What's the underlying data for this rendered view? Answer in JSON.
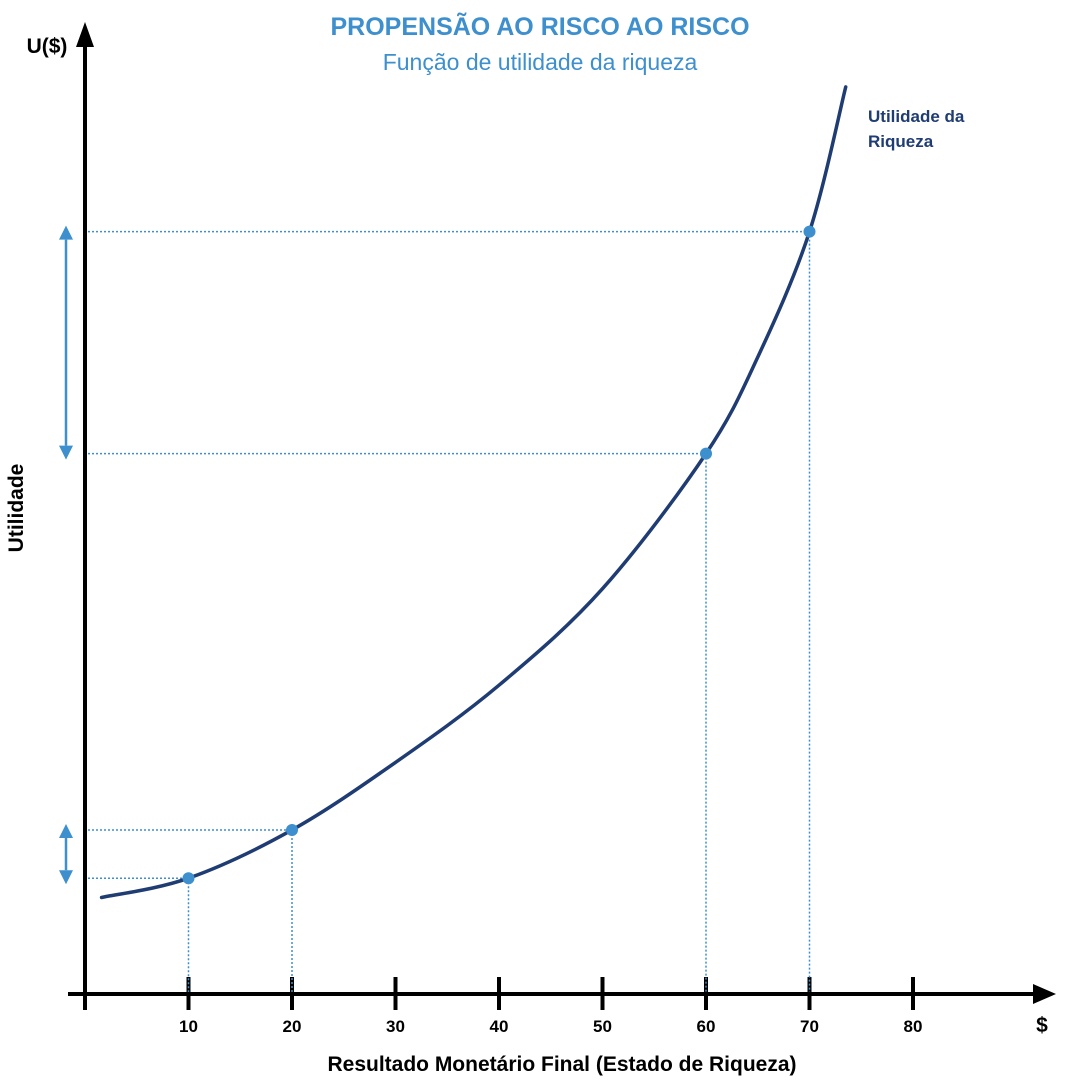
{
  "chart_data": {
    "type": "line",
    "title": "PROPENSÃO AO RISCO AO RISCO",
    "subtitle": "Função de utilidade da riqueza",
    "y_axis_label": "U($)",
    "y_side_label": "Utilidade",
    "x_unit_label": "$",
    "xlabel": "Resultado Monetário Final (Estado de Riqueza)",
    "x_ticks": [
      10,
      20,
      30,
      40,
      50,
      60,
      70,
      80
    ],
    "xlim": [
      0,
      90
    ],
    "grid": false,
    "y_scale": "unlabeled",
    "series": [
      {
        "name_lines": [
          "Utilidade da",
          "Riqueza"
        ],
        "color": "#1f3c73",
        "x": [
          1.6,
          10,
          20,
          30,
          40,
          50,
          60,
          65,
          70,
          73.5
        ],
        "y": [
          0.1,
          0.12,
          0.17,
          0.24,
          0.32,
          0.42,
          0.56,
          0.66,
          0.79,
          0.94
        ]
      }
    ],
    "highlighted_points": [
      {
        "x": 10,
        "y": 0.12
      },
      {
        "x": 20,
        "y": 0.17
      },
      {
        "x": 60,
        "y": 0.56
      },
      {
        "x": 70,
        "y": 0.79
      }
    ],
    "utility_difference_arrows": [
      {
        "from_x": 10,
        "to_x": 20
      },
      {
        "from_x": 60,
        "to_x": 70
      }
    ],
    "colors": {
      "title": "#3d8fcd",
      "curve": "#1f3c73",
      "points": "#3d8fcd",
      "guides": "#3d8fcd",
      "arrows": "#3d8fcd",
      "axes": "#000000"
    }
  }
}
